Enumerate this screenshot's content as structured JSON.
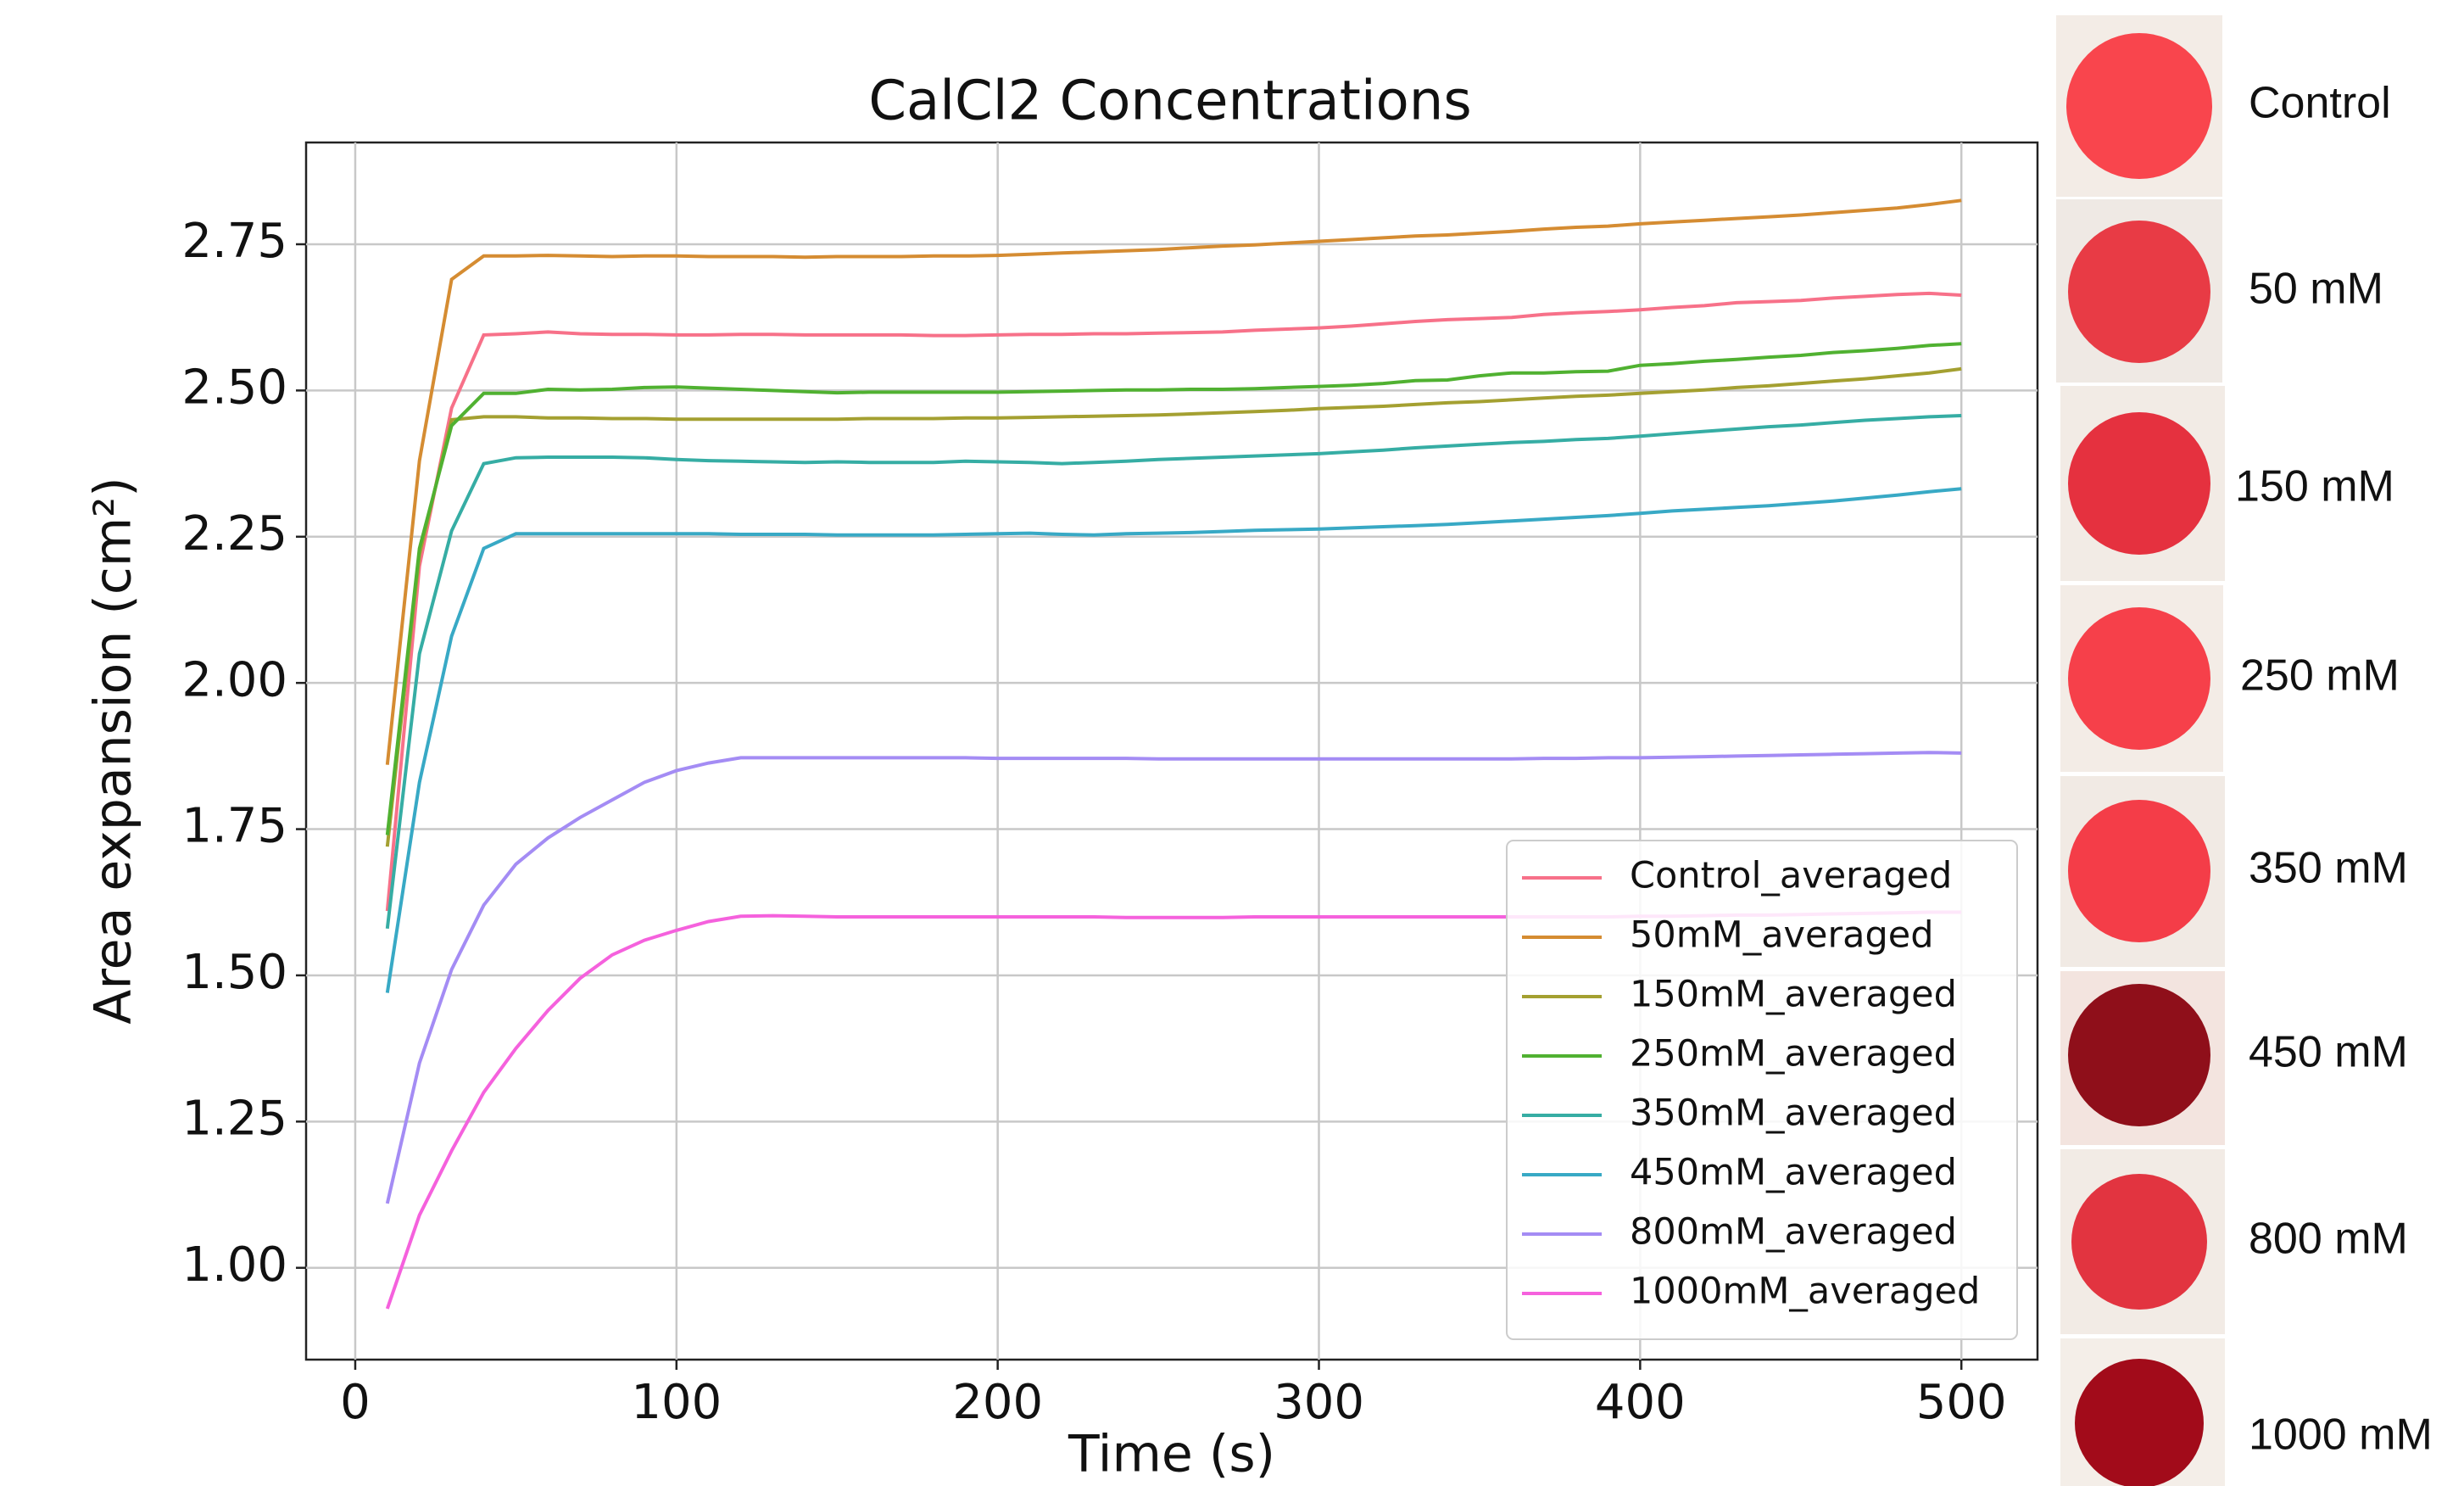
{
  "chart_data": {
    "type": "line",
    "title": "CalCl2 Concentrations",
    "x_label": "Time (s)",
    "y_label": "Area expansion (cm²)",
    "x": [
      10,
      20,
      30,
      40,
      50,
      60,
      70,
      80,
      90,
      100,
      110,
      120,
      130,
      140,
      150,
      160,
      170,
      180,
      190,
      200,
      210,
      220,
      230,
      240,
      250,
      260,
      270,
      280,
      290,
      300,
      310,
      320,
      330,
      340,
      350,
      360,
      370,
      380,
      390,
      400,
      410,
      420,
      430,
      440,
      450,
      460,
      470,
      480,
      490,
      500
    ],
    "series": [
      {
        "name": "Control_averaged",
        "color": "#f77189",
        "values": [
          1.61,
          2.2,
          2.47,
          2.595,
          2.597,
          2.6,
          2.597,
          2.596,
          2.596,
          2.595,
          2.595,
          2.596,
          2.596,
          2.595,
          2.595,
          2.595,
          2.595,
          2.594,
          2.594,
          2.595,
          2.596,
          2.596,
          2.597,
          2.597,
          2.598,
          2.599,
          2.6,
          2.603,
          2.605,
          2.607,
          2.61,
          2.614,
          2.618,
          2.621,
          2.623,
          2.625,
          2.63,
          2.633,
          2.635,
          2.638,
          2.642,
          2.645,
          2.65,
          2.652,
          2.654,
          2.658,
          2.661,
          2.664,
          2.666,
          2.663
        ]
      },
      {
        "name": "50mM_averaged",
        "color": "#d58c32",
        "values": [
          1.86,
          2.38,
          2.69,
          2.73,
          2.73,
          2.731,
          2.73,
          2.729,
          2.73,
          2.73,
          2.729,
          2.729,
          2.729,
          2.728,
          2.729,
          2.729,
          2.729,
          2.73,
          2.73,
          2.731,
          2.733,
          2.735,
          2.737,
          2.739,
          2.741,
          2.744,
          2.747,
          2.749,
          2.752,
          2.755,
          2.758,
          2.761,
          2.764,
          2.766,
          2.769,
          2.772,
          2.776,
          2.779,
          2.781,
          2.785,
          2.788,
          2.791,
          2.794,
          2.797,
          2.8,
          2.804,
          2.808,
          2.812,
          2.818,
          2.825
        ]
      },
      {
        "name": "150mM_averaged",
        "color": "#a4a031",
        "values": [
          1.72,
          2.22,
          2.45,
          2.455,
          2.455,
          2.453,
          2.453,
          2.452,
          2.452,
          2.451,
          2.451,
          2.451,
          2.451,
          2.451,
          2.451,
          2.452,
          2.452,
          2.452,
          2.453,
          2.453,
          2.454,
          2.455,
          2.456,
          2.457,
          2.458,
          2.46,
          2.462,
          2.464,
          2.466,
          2.469,
          2.471,
          2.473,
          2.476,
          2.479,
          2.481,
          2.484,
          2.487,
          2.49,
          2.492,
          2.495,
          2.498,
          2.501,
          2.505,
          2.508,
          2.512,
          2.516,
          2.52,
          2.525,
          2.53,
          2.537
        ]
      },
      {
        "name": "250mM_averaged",
        "color": "#50b131",
        "values": [
          1.74,
          2.23,
          2.44,
          2.495,
          2.495,
          2.502,
          2.501,
          2.502,
          2.505,
          2.506,
          2.504,
          2.502,
          2.5,
          2.498,
          2.496,
          2.497,
          2.497,
          2.497,
          2.497,
          2.497,
          2.498,
          2.499,
          2.5,
          2.501,
          2.501,
          2.502,
          2.502,
          2.503,
          2.505,
          2.507,
          2.509,
          2.512,
          2.517,
          2.518,
          2.525,
          2.53,
          2.53,
          2.532,
          2.533,
          2.543,
          2.546,
          2.55,
          2.553,
          2.557,
          2.56,
          2.565,
          2.568,
          2.572,
          2.577,
          2.58
        ]
      },
      {
        "name": "350mM_averaged",
        "color": "#36ada4",
        "values": [
          1.58,
          2.05,
          2.26,
          2.375,
          2.385,
          2.386,
          2.386,
          2.386,
          2.385,
          2.382,
          2.38,
          2.379,
          2.378,
          2.377,
          2.378,
          2.377,
          2.377,
          2.377,
          2.379,
          2.378,
          2.377,
          2.375,
          2.377,
          2.379,
          2.382,
          2.384,
          2.386,
          2.388,
          2.39,
          2.392,
          2.395,
          2.398,
          2.402,
          2.405,
          2.408,
          2.411,
          2.413,
          2.416,
          2.418,
          2.422,
          2.426,
          2.43,
          2.434,
          2.438,
          2.441,
          2.445,
          2.449,
          2.452,
          2.455,
          2.457
        ]
      },
      {
        "name": "450mM_averaged",
        "color": "#38a9c5",
        "values": [
          1.47,
          1.83,
          2.08,
          2.23,
          2.255,
          2.255,
          2.255,
          2.255,
          2.255,
          2.255,
          2.255,
          2.254,
          2.254,
          2.254,
          2.253,
          2.253,
          2.253,
          2.253,
          2.254,
          2.255,
          2.256,
          2.254,
          2.253,
          2.255,
          2.256,
          2.257,
          2.259,
          2.261,
          2.262,
          2.263,
          2.265,
          2.267,
          2.269,
          2.271,
          2.274,
          2.277,
          2.28,
          2.283,
          2.286,
          2.29,
          2.294,
          2.297,
          2.3,
          2.303,
          2.307,
          2.311,
          2.316,
          2.321,
          2.327,
          2.332
        ]
      },
      {
        "name": "800mM_averaged",
        "color": "#a48cf4",
        "values": [
          1.11,
          1.35,
          1.51,
          1.62,
          1.69,
          1.735,
          1.77,
          1.8,
          1.83,
          1.85,
          1.863,
          1.872,
          1.872,
          1.872,
          1.872,
          1.872,
          1.872,
          1.872,
          1.872,
          1.871,
          1.871,
          1.871,
          1.871,
          1.871,
          1.87,
          1.87,
          1.87,
          1.87,
          1.87,
          1.87,
          1.87,
          1.87,
          1.87,
          1.87,
          1.87,
          1.87,
          1.871,
          1.871,
          1.872,
          1.872,
          1.873,
          1.874,
          1.875,
          1.876,
          1.877,
          1.878,
          1.879,
          1.88,
          1.881,
          1.88
        ]
      },
      {
        "name": "1000mM_averaged",
        "color": "#f561dd",
        "values": [
          0.93,
          1.09,
          1.2,
          1.3,
          1.375,
          1.44,
          1.495,
          1.535,
          1.56,
          1.577,
          1.592,
          1.601,
          1.602,
          1.601,
          1.6,
          1.6,
          1.6,
          1.6,
          1.6,
          1.6,
          1.6,
          1.6,
          1.6,
          1.599,
          1.599,
          1.599,
          1.599,
          1.6,
          1.6,
          1.6,
          1.6,
          1.6,
          1.6,
          1.6,
          1.6,
          1.6,
          1.6,
          1.6,
          1.6,
          1.601,
          1.601,
          1.602,
          1.603,
          1.603,
          1.604,
          1.605,
          1.606,
          1.607,
          1.608,
          1.608
        ]
      }
    ],
    "xlim": [
      -15.3,
      523.7
    ],
    "ylim": [
      0.843,
      2.924
    ],
    "xticks": [
      0,
      100,
      200,
      300,
      400,
      500
    ],
    "yticks": [
      {
        "value": 1,
        "label": "1.00"
      },
      1.25,
      {
        "value": 1.5,
        "label": "1.50"
      },
      1.75,
      {
        "value": 2,
        "label": "2.00"
      },
      2.25,
      {
        "value": 2.5,
        "label": "2.50"
      },
      2.75
    ],
    "grid": true,
    "legend": "lower right"
  },
  "images": [
    {
      "label": "Control"
    },
    {
      "label": "50 mM"
    },
    {
      "label": "150 mM"
    },
    {
      "label": "250 mM"
    },
    {
      "label": "350 mM"
    },
    {
      "label": "450 mM"
    },
    {
      "label": "800 mM"
    },
    {
      "label": "1000 mM"
    }
  ]
}
